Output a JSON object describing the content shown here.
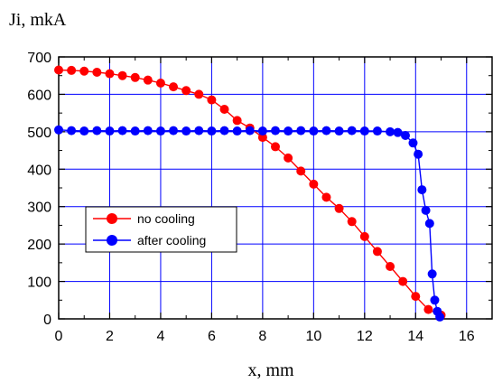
{
  "chart_data": {
    "type": "scatter",
    "ylabel": "Ji, mkA",
    "xlabel": "x, mm",
    "xlim": [
      0,
      17
    ],
    "ylim": [
      0,
      700
    ],
    "xticks": [
      0,
      2,
      4,
      6,
      8,
      10,
      12,
      14,
      16
    ],
    "yticks": [
      0,
      100,
      200,
      300,
      400,
      500,
      600,
      700
    ],
    "grid": true,
    "legend_position": "left-middle",
    "series": [
      {
        "name": "no cooling",
        "color": "#ff0000",
        "marker": "circle",
        "x": [
          0,
          0.5,
          1,
          1.5,
          2,
          2.5,
          3,
          3.5,
          4,
          4.5,
          5,
          5.5,
          6,
          6.5,
          7,
          7.5,
          8,
          8.5,
          9,
          9.5,
          10,
          10.5,
          11,
          11.5,
          12,
          12.5,
          13,
          13.5,
          14,
          14.5,
          15
        ],
        "y": [
          665,
          664,
          662,
          659,
          655,
          650,
          645,
          638,
          630,
          620,
          610,
          600,
          585,
          560,
          530,
          510,
          485,
          460,
          430,
          395,
          360,
          325,
          295,
          260,
          220,
          180,
          140,
          100,
          60,
          25,
          10
        ]
      },
      {
        "name": "after cooling",
        "color": "#0000ff",
        "marker": "circle",
        "x": [
          0,
          0.5,
          1,
          1.5,
          2,
          2.5,
          3,
          3.5,
          4,
          4.5,
          5,
          5.5,
          6,
          6.5,
          7,
          7.5,
          8,
          8.5,
          9,
          9.5,
          10,
          10.5,
          11,
          11.5,
          12,
          12.5,
          13,
          13.3,
          13.6,
          13.9,
          14.1,
          14.25,
          14.4,
          14.55,
          14.65,
          14.75,
          14.85,
          14.95
        ],
        "y": [
          505,
          503,
          502,
          503,
          502,
          503,
          502,
          503,
          502,
          503,
          502,
          503,
          502,
          503,
          502,
          503,
          502,
          503,
          502,
          503,
          502,
          503,
          502,
          503,
          502,
          502,
          500,
          498,
          490,
          470,
          440,
          345,
          290,
          255,
          120,
          50,
          20,
          5
        ]
      }
    ]
  }
}
